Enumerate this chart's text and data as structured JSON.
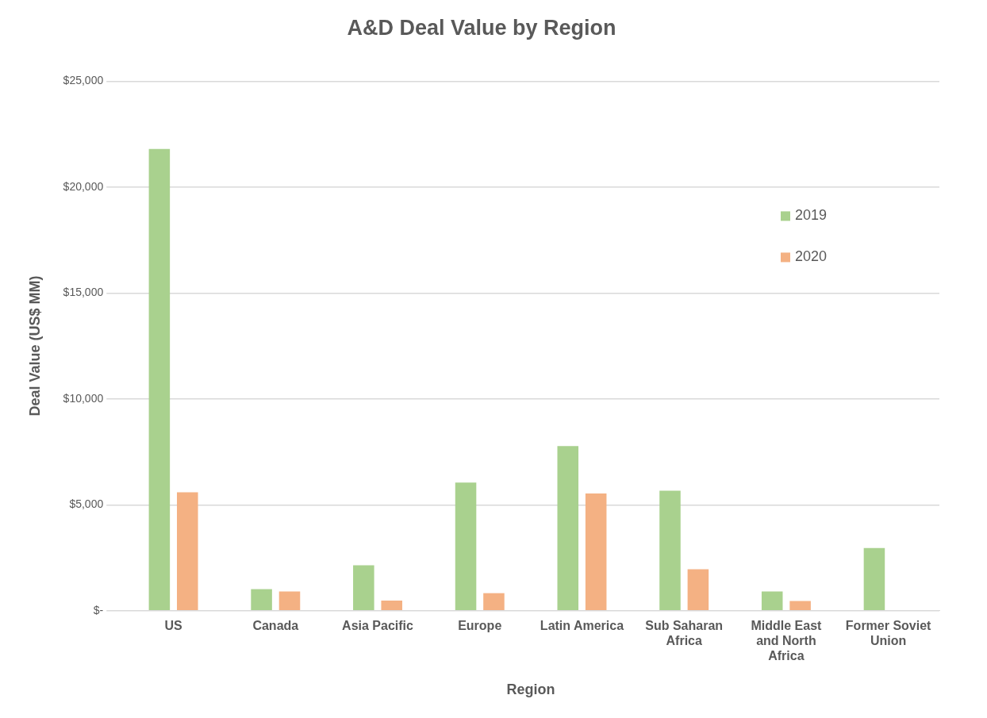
{
  "chart_data": {
    "type": "bar",
    "title": "A&D Deal Value by Region",
    "xlabel": "Region",
    "ylabel": "Deal Value (US$ MM)",
    "categories": [
      "US",
      "Canada",
      "Asia Pacific",
      "Europe",
      "Latin America",
      "Sub Saharan Africa",
      "Middle East and North Africa",
      "Former Soviet Union"
    ],
    "series": [
      {
        "name": "2019",
        "color": "#a9d18e",
        "values": [
          21800,
          1020,
          2150,
          6050,
          7770,
          5670,
          910,
          2960
        ]
      },
      {
        "name": "2020",
        "color": "#f4b183",
        "values": [
          5590,
          910,
          480,
          830,
          5540,
          1960,
          460,
          null
        ]
      }
    ],
    "ylim": [
      0,
      25000
    ],
    "yticks": [
      {
        "value": 0,
        "label": "$-"
      },
      {
        "value": 5000,
        "label": "$5,000"
      },
      {
        "value": 10000,
        "label": "$10,000"
      },
      {
        "value": 15000,
        "label": "$15,000"
      },
      {
        "value": 20000,
        "label": "$20,000"
      },
      {
        "value": 25000,
        "label": "$25,000"
      }
    ],
    "grid": "y",
    "legend": "top right"
  }
}
